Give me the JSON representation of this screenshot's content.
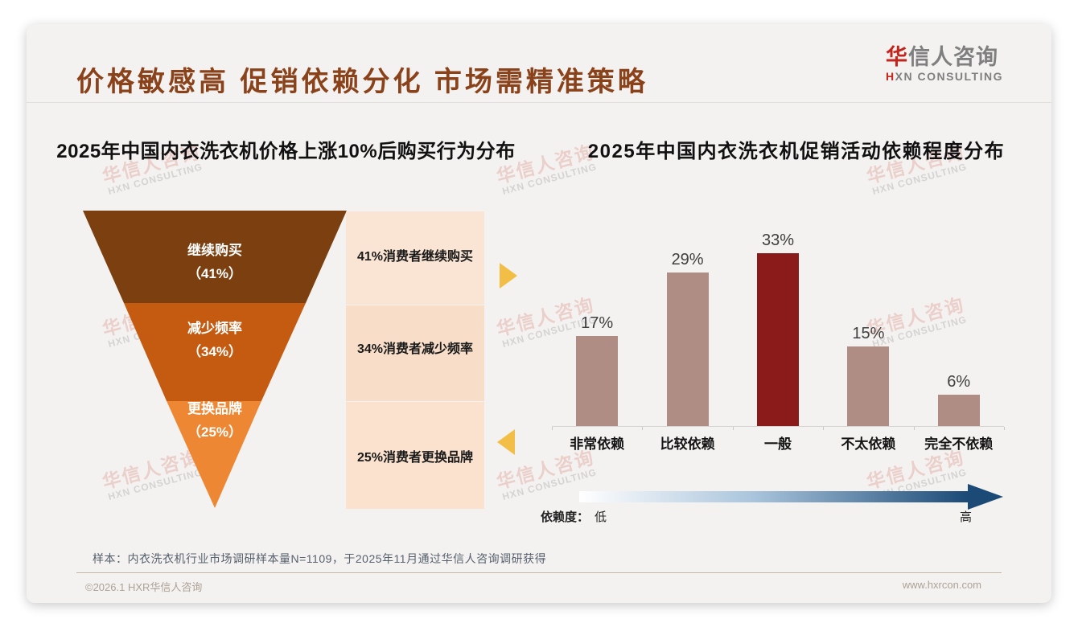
{
  "header": {
    "title": "价格敏感高 促销依赖分化 市场需精准策略",
    "logo": {
      "cn_first": "华",
      "cn_rest": "信人咨询",
      "en_first": "H",
      "en_rest": "XN CONSULTING"
    }
  },
  "watermark": {
    "line1": "华信人咨询",
    "line2": "HXN CONSULTING"
  },
  "chart_data": [
    {
      "type": "funnel",
      "title": "2025年中国内衣洗衣机价格上涨10%后购买行为分布",
      "categories": [
        "继续购买",
        "减少频率",
        "更换品牌"
      ],
      "values": [
        41,
        34,
        25
      ],
      "unit": "%",
      "value_labels": [
        "（41%）",
        "（34%）",
        "（25%）"
      ],
      "annotations": [
        "41%消费者继续购买",
        "34%消费者减少频率",
        "25%消费者更换品牌"
      ],
      "colors": [
        "#7B3F10",
        "#C55A11",
        "#ED8733"
      ],
      "annotation_panel_colors": [
        "#FAE4D3",
        "#F8DEC9",
        "#FAE2CF"
      ]
    },
    {
      "type": "bar",
      "title": "2025年中国内衣洗衣机促销活动依赖程度分布",
      "categories": [
        "非常依赖",
        "比较依赖",
        "一般",
        "不太依赖",
        "完全不依赖"
      ],
      "values": [
        17,
        29,
        33,
        15,
        6
      ],
      "value_labels": [
        "17%",
        "29%",
        "33%",
        "15%",
        "6%"
      ],
      "bar_colors": [
        "#AF8D85",
        "#AF8D85",
        "#8B1A1A",
        "#AF8D85",
        "#AF8D85"
      ],
      "highlight_index": 2,
      "highlight_color": "#8B1A1A",
      "base_color": "#AF8D85",
      "ylim": [
        0,
        35
      ],
      "grid": false,
      "legend": "none"
    }
  ],
  "dependency_scale": {
    "label": "依赖度：",
    "low": "低",
    "high": "高",
    "gradient_start": "#FFFFFF",
    "gradient_end": "#1B4A77"
  },
  "sample_note": "样本：内衣洗衣机行业市场调研样本量N=1109，于2025年11月通过华信人咨询调研获得",
  "footer": {
    "copyright": "©2026.1 HXR华信人咨询",
    "website": "www.hxrcon.com"
  }
}
